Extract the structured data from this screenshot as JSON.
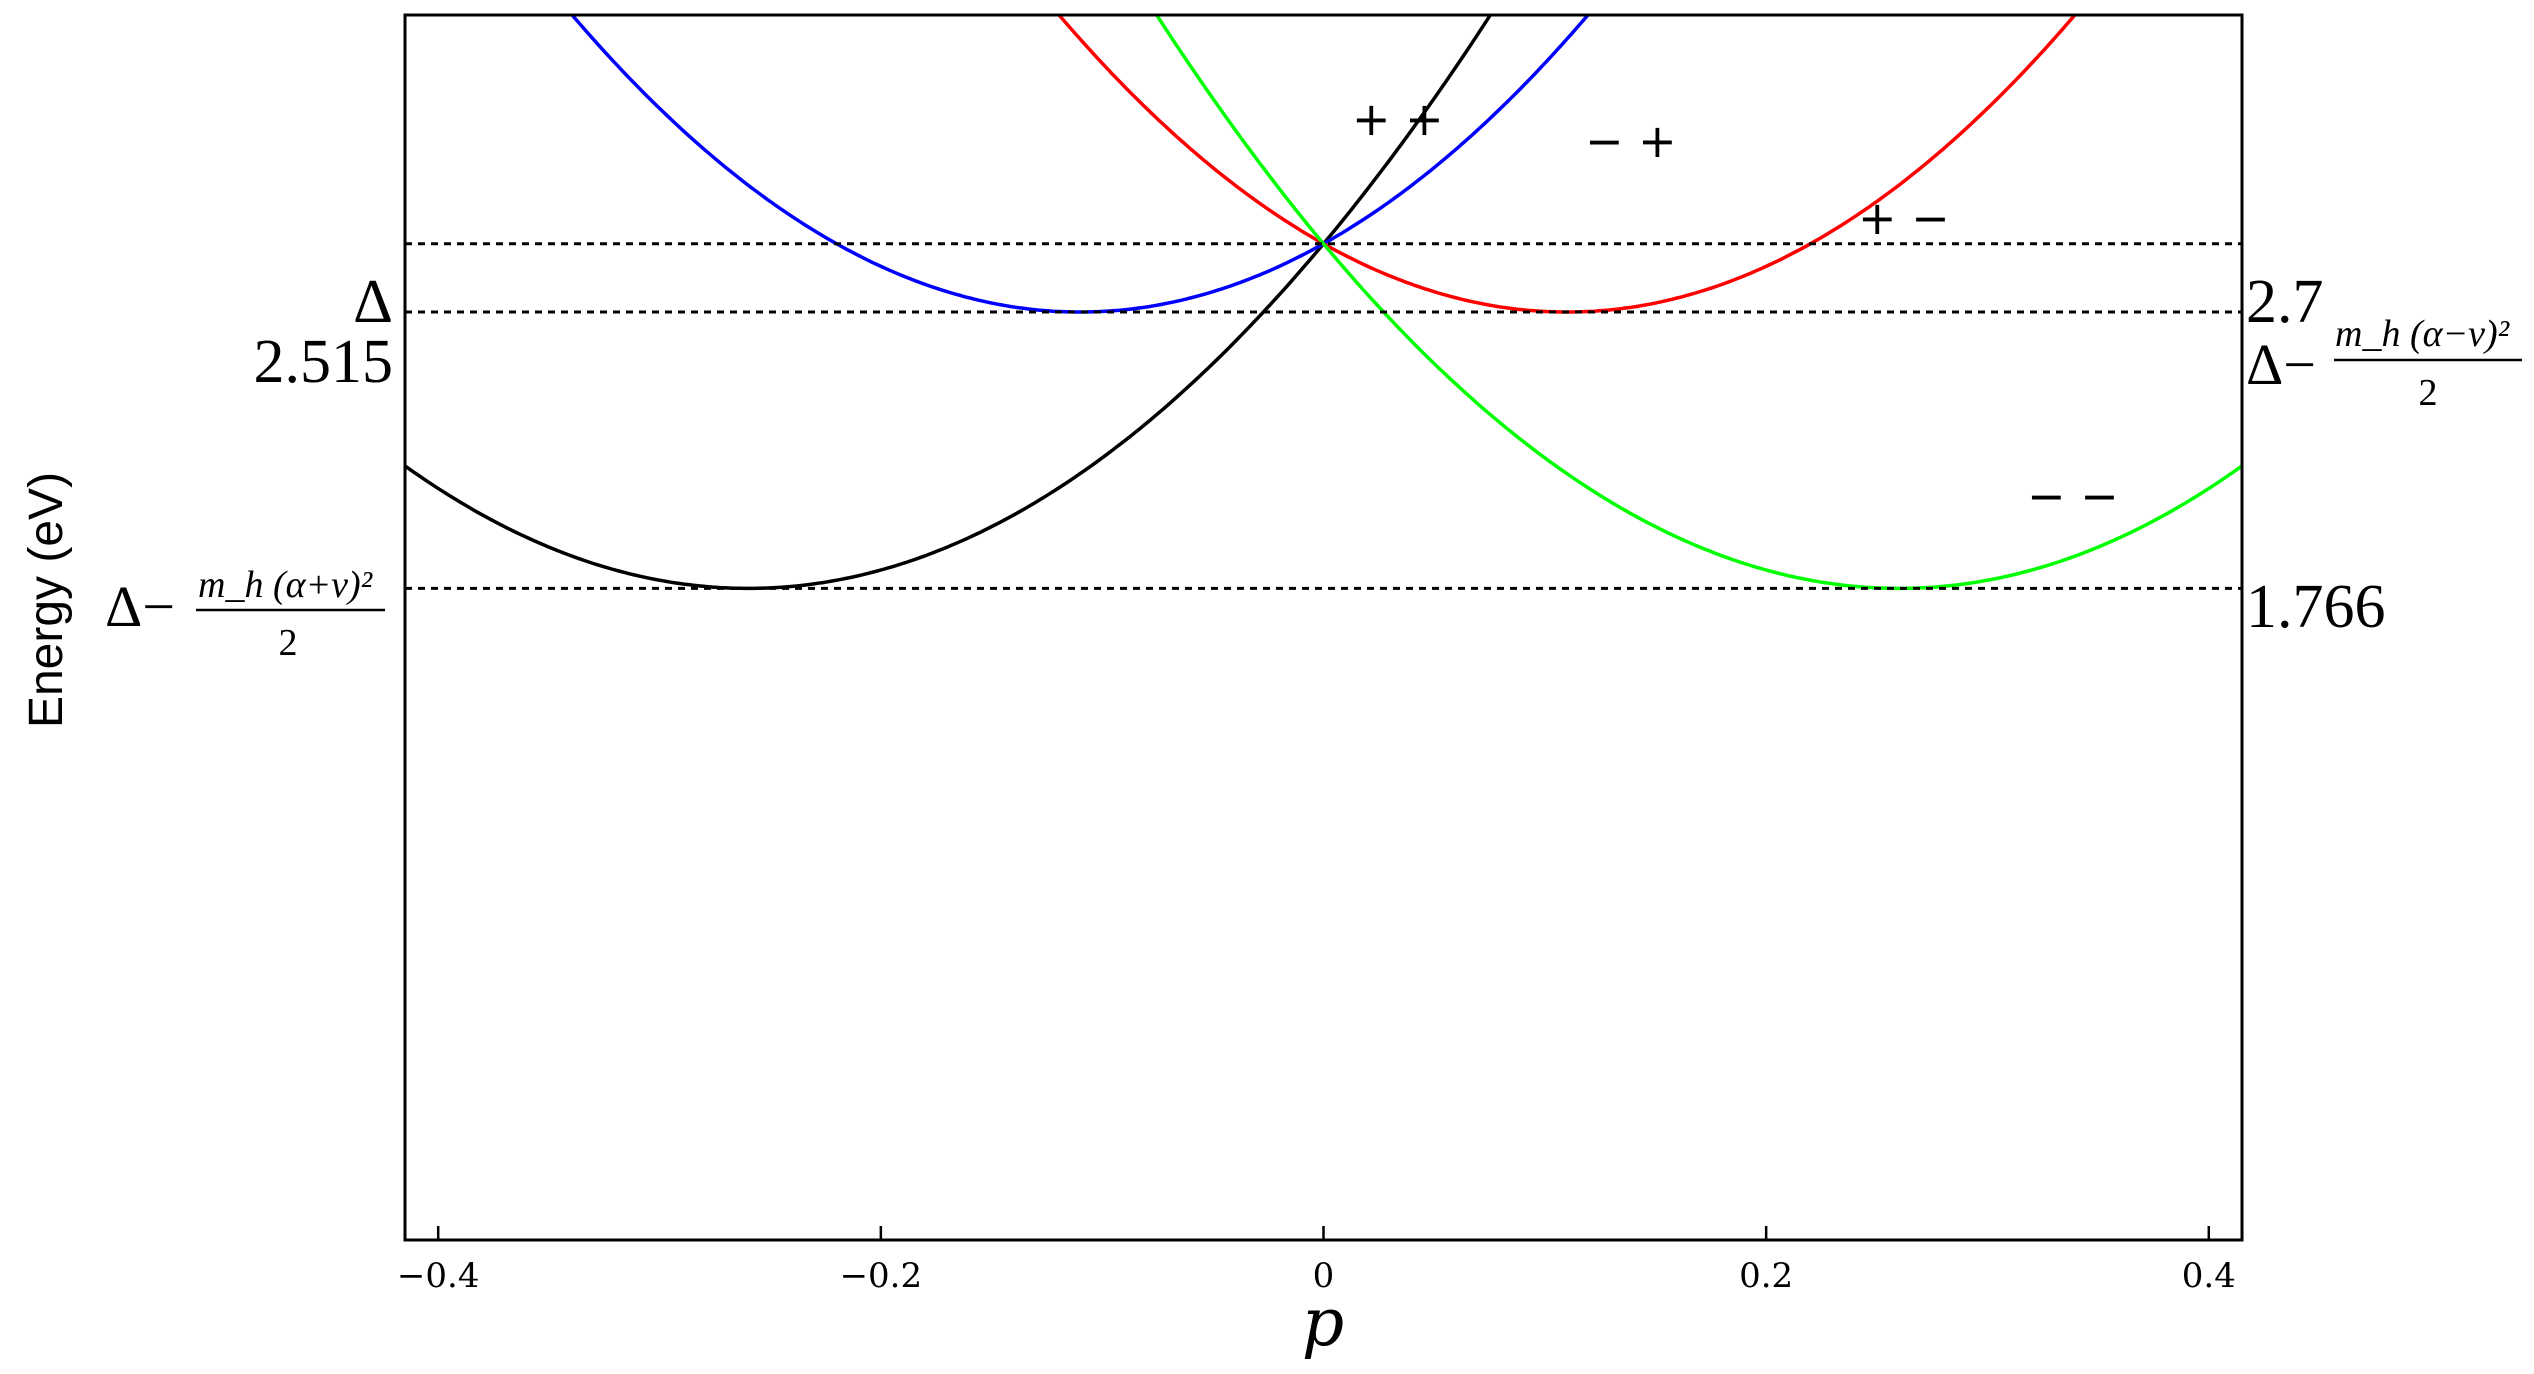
{
  "chart_data": {
    "type": "line",
    "title": "",
    "xlabel": "p",
    "ylabel": "Energy (eV)",
    "xlim": [
      -0.415,
      0.415
    ],
    "ylim": [
      0.0,
      3.32
    ],
    "x_ticks": [
      -0.4,
      -0.2,
      0,
      0.2,
      0.4
    ],
    "x_tick_labels": [
      "−0.4",
      "−0.2",
      "0",
      "0.2",
      "0.4"
    ],
    "grid": false,
    "series": [
      {
        "name": "+ +",
        "color": "#000000",
        "vertex_x": -0.26,
        "min_energy": 1.766,
        "values_at": {
          "x": [
            -0.415,
            -0.26,
            0,
            0.1
          ],
          "y": [
            2.04,
            1.766,
            2.7,
            3.32
          ]
        }
      },
      {
        "name": "− +",
        "color": "#0000ff",
        "vertex_x": -0.11,
        "min_energy": 2.515,
        "values_at": {
          "x": [
            -0.39,
            -0.11,
            0,
            0.16
          ],
          "y": [
            3.32,
            2.515,
            2.7,
            3.32
          ]
        }
      },
      {
        "name": "+ −",
        "color": "#ff0000",
        "vertex_x": 0.11,
        "min_energy": 2.515,
        "values_at": {
          "x": [
            -0.16,
            0,
            0.11,
            0.39
          ],
          "y": [
            3.32,
            2.7,
            2.515,
            3.32
          ]
        }
      },
      {
        "name": "− −",
        "color": "#00ff00",
        "vertex_x": 0.26,
        "min_energy": 1.766,
        "values_at": {
          "x": [
            -0.1,
            0,
            0.26,
            0.415
          ],
          "y": [
            3.32,
            2.7,
            1.766,
            2.04
          ]
        }
      }
    ],
    "reference_lines": [
      {
        "value": 2.7,
        "left_label": "Δ",
        "right_label": "2.7"
      },
      {
        "value": 2.515,
        "left_label": "2.515",
        "right_label_formula": {
          "prefix": "Δ−",
          "numerator": "m_h (α−ν)²",
          "denominator": "2"
        }
      },
      {
        "value": 1.766,
        "left_label_formula": {
          "prefix": "Δ−",
          "numerator": "m_h (α+ν)²",
          "denominator": "2"
        },
        "right_label": "1.766"
      }
    ],
    "curve_labels": [
      "+ +",
      "− +",
      "+ −",
      "− −"
    ]
  }
}
